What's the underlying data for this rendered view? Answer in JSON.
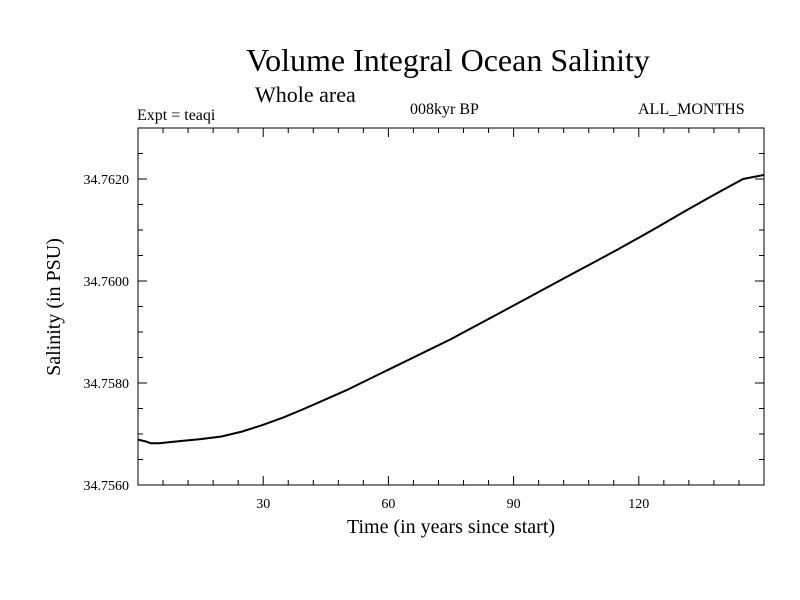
{
  "chart_data": {
    "type": "line",
    "title": "Volume Integral Ocean Salinity",
    "subtitle": "Whole area",
    "experiment": "Expt = teaqi",
    "period": "008kyr BP",
    "months": "ALL_MONTHS",
    "xlabel": "Time (in years since start)",
    "ylabel": "Salinity (in PSU)",
    "xlim": [
      0,
      150
    ],
    "ylim": [
      34.756,
      34.763
    ],
    "xticks_major": [
      30,
      60,
      90,
      120
    ],
    "xtick_labels": [
      "30",
      "60",
      "90",
      "120"
    ],
    "xticks_minor": [
      6,
      12,
      18,
      24,
      36,
      42,
      48,
      54,
      66,
      72,
      78,
      84,
      96,
      102,
      108,
      114,
      126,
      132,
      138,
      144
    ],
    "yticks_major": [
      34.756,
      34.758,
      34.76,
      34.762
    ],
    "ytick_labels": [
      "34.7560",
      "34.7580",
      "34.7600",
      "34.7620"
    ],
    "yticks_minor": [
      34.7565,
      34.757,
      34.7575,
      34.7585,
      34.759,
      34.7595,
      34.7605,
      34.761,
      34.7615,
      34.7625
    ],
    "series": [
      {
        "name": "Salinity",
        "x": [
          0,
          2,
          3,
          5,
          10,
          15,
          20,
          25,
          30,
          35,
          40,
          45,
          50,
          55,
          60,
          65,
          70,
          75,
          80,
          85,
          90,
          95,
          100,
          105,
          110,
          115,
          120,
          125,
          130,
          135,
          140,
          145,
          150
        ],
        "values": [
          34.75689,
          34.75685,
          34.75682,
          34.75682,
          34.75686,
          34.7569,
          34.75695,
          34.75705,
          34.75718,
          34.75733,
          34.7575,
          34.75768,
          34.75786,
          34.75806,
          34.75826,
          34.75846,
          34.75866,
          34.75886,
          34.75908,
          34.7593,
          34.75952,
          34.75974,
          34.75996,
          34.76018,
          34.7604,
          34.76062,
          34.76085,
          34.76108,
          34.76132,
          34.76155,
          34.76178,
          34.762,
          34.76208
        ]
      }
    ]
  }
}
